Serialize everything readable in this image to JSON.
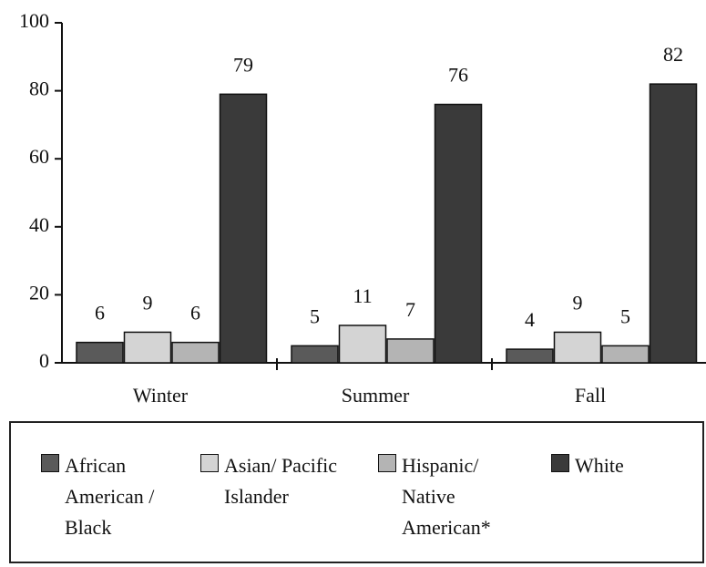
{
  "chart_data": {
    "type": "bar",
    "categories": [
      "Winter",
      "Summer",
      "Fall"
    ],
    "series": [
      {
        "name": "African American / Black",
        "color": "#5a5a5a",
        "values": [
          6,
          5,
          4
        ]
      },
      {
        "name": "Asian/ Pacific Islander",
        "color": "#d4d4d4",
        "values": [
          9,
          11,
          9
        ]
      },
      {
        "name": "Hispanic/ Native American*",
        "color": "#b4b4b4",
        "values": [
          6,
          7,
          5
        ]
      },
      {
        "name": "White",
        "color": "#3a3a3a",
        "values": [
          79,
          76,
          82
        ]
      }
    ],
    "ylim": [
      0,
      100
    ],
    "yticks": [
      0,
      20,
      40,
      60,
      80,
      100
    ],
    "grid": false
  }
}
